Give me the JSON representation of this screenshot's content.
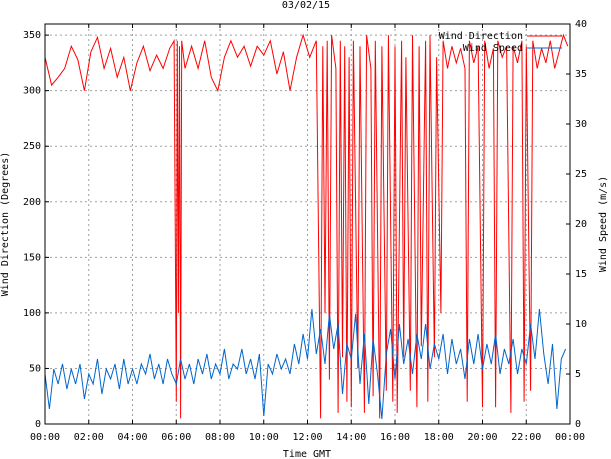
{
  "chart_data": {
    "type": "line",
    "title": "03/02/15",
    "xlabel": "Time GMT",
    "ylabel_left": "Wind Direction (Degrees)",
    "ylabel_right": "Wind Speed (m/s)",
    "x_ticks": [
      "00:00",
      "02:00",
      "04:00",
      "06:00",
      "08:00",
      "10:00",
      "12:00",
      "14:00",
      "16:00",
      "18:00",
      "20:00",
      "22:00",
      "00:00"
    ],
    "y_left_ticks": [
      "0",
      "50",
      "100",
      "150",
      "200",
      "250",
      "300",
      "350"
    ],
    "y_right_ticks": [
      "0",
      "5",
      "10",
      "15",
      "20",
      "25",
      "30",
      "35",
      "40"
    ],
    "xlim_hours": [
      0,
      24
    ],
    "ylim_left": [
      0,
      360
    ],
    "ylim_right": [
      0,
      40
    ],
    "grid": true,
    "legend_position": "top-right",
    "series": [
      {
        "name": "Wind Direction",
        "axis": "left",
        "color": "#ff0000",
        "points": [
          [
            0.0,
            330
          ],
          [
            0.3,
            305
          ],
          [
            0.6,
            312
          ],
          [
            0.9,
            320
          ],
          [
            1.2,
            340
          ],
          [
            1.5,
            328
          ],
          [
            1.8,
            300
          ],
          [
            2.1,
            335
          ],
          [
            2.4,
            348
          ],
          [
            2.7,
            320
          ],
          [
            3.0,
            338
          ],
          [
            3.3,
            312
          ],
          [
            3.6,
            330
          ],
          [
            3.9,
            300
          ],
          [
            4.2,
            325
          ],
          [
            4.5,
            340
          ],
          [
            4.8,
            318
          ],
          [
            5.1,
            332
          ],
          [
            5.4,
            320
          ],
          [
            5.7,
            338
          ],
          [
            5.9,
            345
          ],
          [
            6.0,
            20
          ],
          [
            6.05,
            345
          ],
          [
            6.1,
            100
          ],
          [
            6.15,
            340
          ],
          [
            6.2,
            5
          ],
          [
            6.25,
            345
          ],
          [
            6.4,
            320
          ],
          [
            6.7,
            340
          ],
          [
            7.0,
            320
          ],
          [
            7.3,
            345
          ],
          [
            7.6,
            312
          ],
          [
            7.9,
            300
          ],
          [
            8.2,
            330
          ],
          [
            8.5,
            345
          ],
          [
            8.8,
            330
          ],
          [
            9.1,
            340
          ],
          [
            9.4,
            322
          ],
          [
            9.7,
            340
          ],
          [
            10.0,
            332
          ],
          [
            10.3,
            345
          ],
          [
            10.6,
            315
          ],
          [
            10.9,
            335
          ],
          [
            11.2,
            300
          ],
          [
            11.5,
            330
          ],
          [
            11.8,
            350
          ],
          [
            12.1,
            330
          ],
          [
            12.4,
            345
          ],
          [
            12.6,
            5
          ],
          [
            12.7,
            340
          ],
          [
            12.8,
            100
          ],
          [
            12.9,
            345
          ],
          [
            13.0,
            40
          ],
          [
            13.1,
            350
          ],
          [
            13.3,
            320
          ],
          [
            13.4,
            10
          ],
          [
            13.5,
            345
          ],
          [
            13.6,
            60
          ],
          [
            13.7,
            340
          ],
          [
            13.8,
            20
          ],
          [
            13.9,
            330
          ],
          [
            14.0,
            15
          ],
          [
            14.1,
            345
          ],
          [
            14.3,
            50
          ],
          [
            14.4,
            340
          ],
          [
            14.6,
            10
          ],
          [
            14.7,
            350
          ],
          [
            14.9,
            320
          ],
          [
            15.0,
            25
          ],
          [
            15.1,
            345
          ],
          [
            15.3,
            5
          ],
          [
            15.4,
            340
          ],
          [
            15.6,
            30
          ],
          [
            15.7,
            350
          ],
          [
            15.9,
            20
          ],
          [
            16.0,
            340
          ],
          [
            16.1,
            10
          ],
          [
            16.3,
            345
          ],
          [
            16.4,
            60
          ],
          [
            16.5,
            330
          ],
          [
            16.7,
            30
          ],
          [
            16.8,
            350
          ],
          [
            17.0,
            15
          ],
          [
            17.1,
            340
          ],
          [
            17.2,
            70
          ],
          [
            17.4,
            345
          ],
          [
            17.5,
            20
          ],
          [
            17.6,
            350
          ],
          [
            17.8,
            60
          ],
          [
            17.9,
            330
          ],
          [
            18.1,
            100
          ],
          [
            18.2,
            345
          ],
          [
            18.4,
            320
          ],
          [
            18.6,
            340
          ],
          [
            18.8,
            325
          ],
          [
            19.0,
            338
          ],
          [
            19.2,
            320
          ],
          [
            19.3,
            20
          ],
          [
            19.4,
            345
          ],
          [
            19.6,
            325
          ],
          [
            19.8,
            340
          ],
          [
            20.0,
            15
          ],
          [
            20.1,
            345
          ],
          [
            20.3,
            320
          ],
          [
            20.5,
            338
          ],
          [
            20.6,
            15
          ],
          [
            20.7,
            345
          ],
          [
            20.9,
            330
          ],
          [
            21.1,
            340
          ],
          [
            21.3,
            10
          ],
          [
            21.4,
            340
          ],
          [
            21.6,
            325
          ],
          [
            21.8,
            345
          ],
          [
            21.9,
            20
          ],
          [
            22.0,
            340
          ],
          [
            22.2,
            30
          ],
          [
            22.3,
            345
          ],
          [
            22.5,
            320
          ],
          [
            22.7,
            338
          ],
          [
            22.9,
            325
          ],
          [
            23.1,
            345
          ],
          [
            23.3,
            320
          ],
          [
            23.5,
            335
          ],
          [
            23.7,
            350
          ],
          [
            23.9,
            340
          ]
        ]
      },
      {
        "name": "Wind Speed",
        "axis": "right",
        "color": "#0066cc",
        "points": [
          [
            0.0,
            5.0
          ],
          [
            0.2,
            1.5
          ],
          [
            0.4,
            5.5
          ],
          [
            0.6,
            4.0
          ],
          [
            0.8,
            6.0
          ],
          [
            1.0,
            3.5
          ],
          [
            1.2,
            5.5
          ],
          [
            1.4,
            4.0
          ],
          [
            1.6,
            6.0
          ],
          [
            1.8,
            2.5
          ],
          [
            2.0,
            5.0
          ],
          [
            2.2,
            4.0
          ],
          [
            2.4,
            6.5
          ],
          [
            2.6,
            3.0
          ],
          [
            2.8,
            5.5
          ],
          [
            3.0,
            4.5
          ],
          [
            3.2,
            6.0
          ],
          [
            3.4,
            3.5
          ],
          [
            3.6,
            6.5
          ],
          [
            3.8,
            4.0
          ],
          [
            4.0,
            5.5
          ],
          [
            4.2,
            4.0
          ],
          [
            4.4,
            6.0
          ],
          [
            4.6,
            5.0
          ],
          [
            4.8,
            7.0
          ],
          [
            5.0,
            4.5
          ],
          [
            5.2,
            6.0
          ],
          [
            5.4,
            4.0
          ],
          [
            5.6,
            6.5
          ],
          [
            5.8,
            5.0
          ],
          [
            6.0,
            4.0
          ],
          [
            6.2,
            6.5
          ],
          [
            6.4,
            4.5
          ],
          [
            6.6,
            6.0
          ],
          [
            6.8,
            4.0
          ],
          [
            7.0,
            6.5
          ],
          [
            7.2,
            5.0
          ],
          [
            7.4,
            7.0
          ],
          [
            7.6,
            4.5
          ],
          [
            7.8,
            6.0
          ],
          [
            8.0,
            5.0
          ],
          [
            8.2,
            7.5
          ],
          [
            8.4,
            4.5
          ],
          [
            8.6,
            6.0
          ],
          [
            8.8,
            5.5
          ],
          [
            9.0,
            7.5
          ],
          [
            9.2,
            5.0
          ],
          [
            9.4,
            6.5
          ],
          [
            9.6,
            4.5
          ],
          [
            9.8,
            7.0
          ],
          [
            10.0,
            0.8
          ],
          [
            10.2,
            6.0
          ],
          [
            10.4,
            5.0
          ],
          [
            10.6,
            7.0
          ],
          [
            10.8,
            5.5
          ],
          [
            11.0,
            6.5
          ],
          [
            11.2,
            5.0
          ],
          [
            11.4,
            8.0
          ],
          [
            11.6,
            6.0
          ],
          [
            11.8,
            9.0
          ],
          [
            12.0,
            6.5
          ],
          [
            12.2,
            11.5
          ],
          [
            12.4,
            7.0
          ],
          [
            12.6,
            9.5
          ],
          [
            12.8,
            6.0
          ],
          [
            13.0,
            11.0
          ],
          [
            13.2,
            7.5
          ],
          [
            13.4,
            10.0
          ],
          [
            13.6,
            3.0
          ],
          [
            13.8,
            8.0
          ],
          [
            14.0,
            6.5
          ],
          [
            14.2,
            11.0
          ],
          [
            14.4,
            4.0
          ],
          [
            14.6,
            9.0
          ],
          [
            14.8,
            2.0
          ],
          [
            15.0,
            8.5
          ],
          [
            15.2,
            5.0
          ],
          [
            15.4,
            0.5
          ],
          [
            15.6,
            7.0
          ],
          [
            15.8,
            9.5
          ],
          [
            16.0,
            4.5
          ],
          [
            16.2,
            10.0
          ],
          [
            16.4,
            6.0
          ],
          [
            16.6,
            8.5
          ],
          [
            16.8,
            5.0
          ],
          [
            17.0,
            9.0
          ],
          [
            17.2,
            6.5
          ],
          [
            17.4,
            10.0
          ],
          [
            17.6,
            5.5
          ],
          [
            17.8,
            8.0
          ],
          [
            18.0,
            6.5
          ],
          [
            18.2,
            9.0
          ],
          [
            18.4,
            5.0
          ],
          [
            18.6,
            8.5
          ],
          [
            18.8,
            6.0
          ],
          [
            19.0,
            7.5
          ],
          [
            19.2,
            4.5
          ],
          [
            19.4,
            8.5
          ],
          [
            19.6,
            6.0
          ],
          [
            19.8,
            9.0
          ],
          [
            20.0,
            5.5
          ],
          [
            20.2,
            8.0
          ],
          [
            20.4,
            6.0
          ],
          [
            20.6,
            9.0
          ],
          [
            20.8,
            5.0
          ],
          [
            21.0,
            7.5
          ],
          [
            21.2,
            6.0
          ],
          [
            21.4,
            8.5
          ],
          [
            21.6,
            5.0
          ],
          [
            21.8,
            7.5
          ],
          [
            22.0,
            6.0
          ],
          [
            22.2,
            10.0
          ],
          [
            22.4,
            6.5
          ],
          [
            22.6,
            11.5
          ],
          [
            22.8,
            7.0
          ],
          [
            23.0,
            4.0
          ],
          [
            23.2,
            8.0
          ],
          [
            23.4,
            1.5
          ],
          [
            23.6,
            6.5
          ],
          [
            23.8,
            7.5
          ]
        ]
      }
    ]
  }
}
